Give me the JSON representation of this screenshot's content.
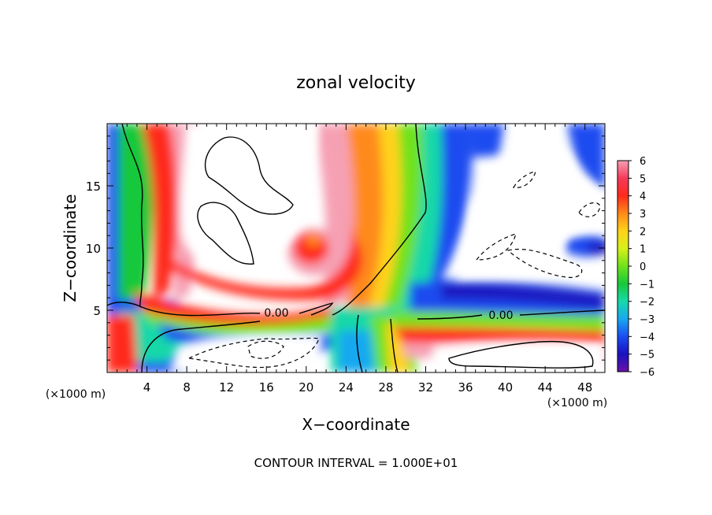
{
  "chart_data": {
    "type": "heatmap",
    "title": "zonal velocity",
    "xlabel": "X−coordinate",
    "ylabel": "Z−coordinate",
    "x_unit": "(×1000 m)",
    "y_unit": "(×1000 m)",
    "xlim": [
      0,
      50
    ],
    "ylim": [
      0,
      20
    ],
    "x_ticks": [
      "4",
      "8",
      "12",
      "16",
      "20",
      "24",
      "28",
      "32",
      "36",
      "40",
      "44",
      "48"
    ],
    "y_ticks": [
      "5",
      "10",
      "15"
    ],
    "contour_label": "0.00",
    "footer": "CONTOUR INTERVAL = 1.000E+01",
    "colorbar": {
      "ticks": [
        "6",
        "5",
        "4",
        "3",
        "2",
        "1",
        "0",
        "−1",
        "−2",
        "−3",
        "−4",
        "−5",
        "−6"
      ],
      "range": [
        -6,
        6
      ],
      "colors": [
        "#f6a0b4",
        "#f53a5a",
        "#ff2a1a",
        "#ff8a1a",
        "#ffd21a",
        "#d8f01a",
        "#6fe21a",
        "#18c83a",
        "#18d8a8",
        "#18a8f0",
        "#1a4cf0",
        "#1a12c0",
        "#6a12a8"
      ]
    },
    "features": [
      {
        "name": "positive-core",
        "x": 20,
        "z": 10.5,
        "value": 4
      },
      {
        "name": "negative-strip",
        "x": 26,
        "z": 3,
        "value": -3
      },
      {
        "name": "positive-column",
        "x": 27,
        "z": 14,
        "value": 3
      }
    ]
  }
}
